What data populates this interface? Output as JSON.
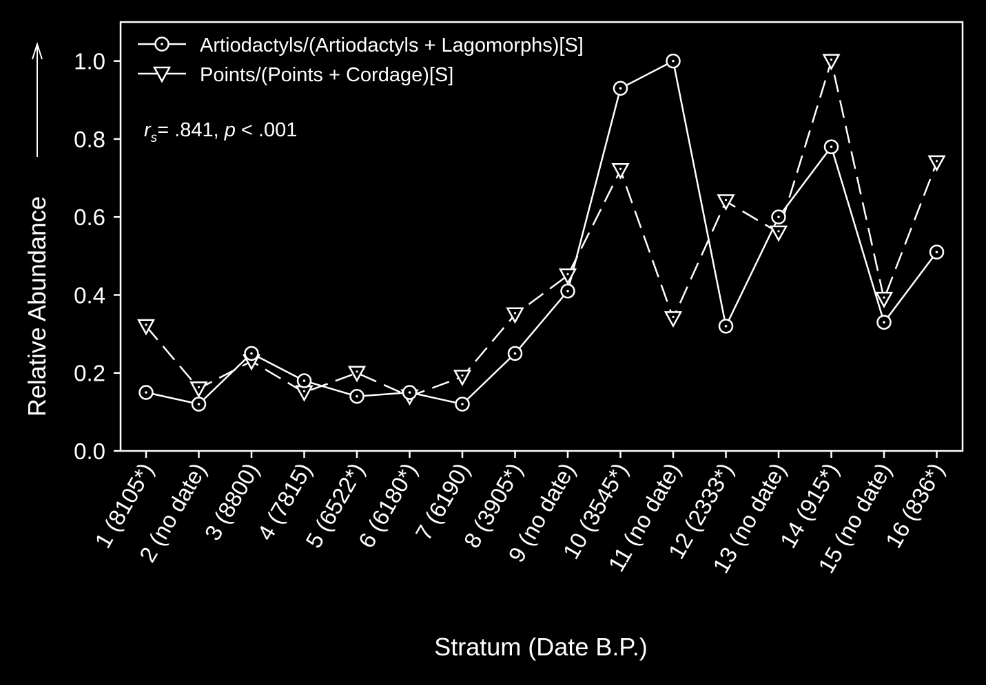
{
  "chart_data": {
    "type": "line",
    "xlabel": "Stratum (Date B.P.)",
    "ylabel": "Relative Abundance",
    "ylim": [
      0,
      1.1
    ],
    "yticks": [
      "0.0",
      "0.2",
      "0.4",
      "0.6",
      "0.8",
      "1.0"
    ],
    "categories": [
      "1 (8105*)",
      "2 (no date)",
      "3 (8800)",
      "4 (7815)",
      "5 (6522*)",
      "6 (6180*)",
      "7 (6190)",
      "8 (3905*)",
      "9 (no date)",
      "10 (3545*)",
      "11 (no date)",
      "12 (2333*)",
      "13 (no date)",
      "14 (915*)",
      "15 (no date)",
      "16 (836*)"
    ],
    "series": [
      {
        "name": "Artiodactyls/(Artiodactyls + Lagomorphs)[S]",
        "marker": "circle",
        "line_style": "solid",
        "values": [
          0.15,
          0.12,
          0.25,
          0.18,
          0.14,
          0.15,
          0.12,
          0.25,
          0.41,
          0.93,
          1.0,
          0.32,
          0.6,
          0.78,
          0.33,
          0.51
        ]
      },
      {
        "name": "Points/(Points + Cordage)[S]",
        "marker": "triangle-down",
        "line_style": "dashed",
        "values": [
          0.32,
          0.16,
          0.23,
          0.15,
          0.2,
          0.14,
          0.19,
          0.35,
          0.45,
          0.72,
          0.34,
          0.64,
          0.56,
          1.0,
          0.39,
          0.74
        ]
      }
    ],
    "annotation": {
      "r_letter": "r",
      "subscript": "s",
      "rest_prefix": "= .841, ",
      "p_letter": "p",
      "rest_suffix": " < .001"
    },
    "legend_position": "top-left",
    "grid": false,
    "colors": {
      "background": "#000000",
      "foreground": "#ffffff"
    }
  }
}
